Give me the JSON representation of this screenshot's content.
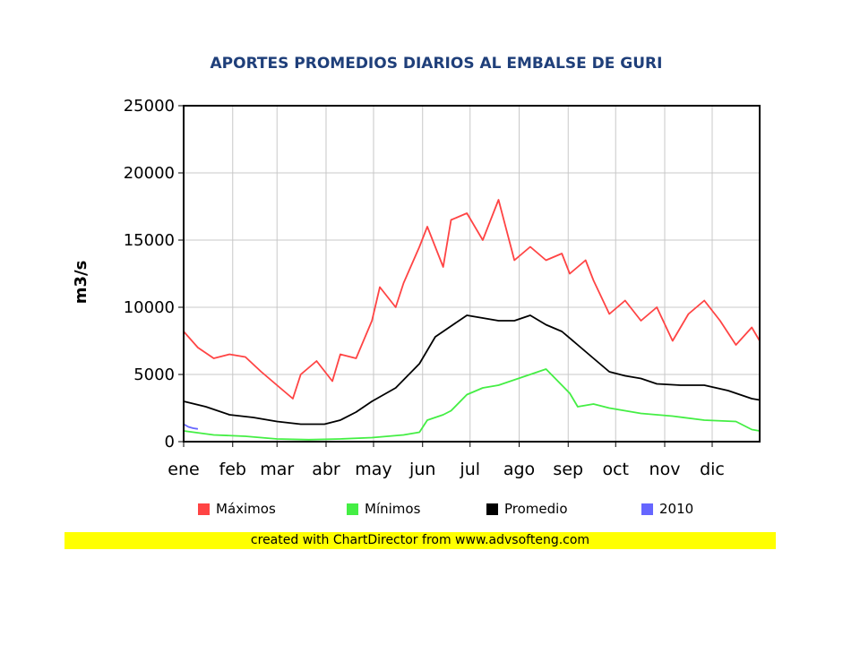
{
  "chart_data": {
    "type": "line",
    "title": "APORTES PROMEDIOS DIARIOS AL EMBALSE DE GURI",
    "xlabel": "",
    "ylabel": "m3/s",
    "ylim": [
      0,
      25000
    ],
    "yticks": [
      0,
      5000,
      10000,
      15000,
      20000,
      25000
    ],
    "x_ticks": [
      "ene",
      "feb",
      "mar",
      "abr",
      "may",
      "jun",
      "jul",
      "ago",
      "sep",
      "oct",
      "nov",
      "dic"
    ],
    "x_tick_days": [
      1,
      32,
      60,
      91,
      121,
      152,
      182,
      213,
      244,
      274,
      305,
      335
    ],
    "x_range": [
      1,
      365
    ],
    "grid": true,
    "legend_position": "bottom",
    "series": [
      {
        "name": "Máximos",
        "color": "#ff4444",
        "x": [
          1,
          10,
          20,
          30,
          40,
          50,
          60,
          70,
          75,
          85,
          95,
          100,
          110,
          120,
          125,
          135,
          140,
          150,
          155,
          165,
          170,
          180,
          190,
          200,
          210,
          220,
          230,
          240,
          245,
          255,
          260,
          270,
          280,
          290,
          300,
          310,
          320,
          330,
          340,
          350,
          360,
          365
        ],
        "y": [
          8200,
          7000,
          6200,
          6500,
          6300,
          5200,
          4200,
          3200,
          5000,
          6000,
          4500,
          6500,
          6200,
          9000,
          11500,
          10000,
          11800,
          14500,
          16000,
          13000,
          16500,
          17000,
          15000,
          18000,
          13500,
          14500,
          13500,
          14000,
          12500,
          13500,
          12000,
          9500,
          10500,
          9000,
          10000,
          7500,
          9500,
          10500,
          9000,
          7200,
          8500,
          7500
        ]
      },
      {
        "name": "Mínimos",
        "color": "#44ee44",
        "x": [
          1,
          20,
          40,
          60,
          80,
          100,
          120,
          140,
          150,
          155,
          165,
          170,
          180,
          190,
          200,
          210,
          220,
          230,
          240,
          245,
          250,
          260,
          270,
          290,
          310,
          330,
          350,
          360,
          365
        ],
        "y": [
          800,
          500,
          400,
          200,
          150,
          200,
          300,
          500,
          700,
          1600,
          2000,
          2300,
          3500,
          4000,
          4200,
          4600,
          5000,
          5400,
          4200,
          3600,
          2600,
          2800,
          2500,
          2100,
          1900,
          1600,
          1500,
          900,
          800
        ]
      },
      {
        "name": "Promedio",
        "color": "#000000",
        "x": [
          1,
          15,
          30,
          45,
          60,
          75,
          90,
          100,
          110,
          120,
          135,
          150,
          160,
          170,
          180,
          190,
          200,
          210,
          220,
          230,
          240,
          250,
          260,
          270,
          280,
          290,
          300,
          315,
          330,
          345,
          360,
          365
        ],
        "y": [
          3000,
          2600,
          2000,
          1800,
          1500,
          1300,
          1300,
          1600,
          2200,
          3000,
          4000,
          5800,
          7800,
          8600,
          9400,
          9200,
          9000,
          9000,
          9400,
          8700,
          8200,
          7200,
          6200,
          5200,
          4900,
          4700,
          4300,
          4200,
          4200,
          3800,
          3200,
          3100
        ]
      },
      {
        "name": "2010",
        "color": "#6666ff",
        "x": [
          1,
          4,
          7,
          10
        ],
        "y": [
          1300,
          1100,
          1000,
          950
        ]
      }
    ]
  },
  "credit": "created with ChartDirector from www.advsofteng.com"
}
